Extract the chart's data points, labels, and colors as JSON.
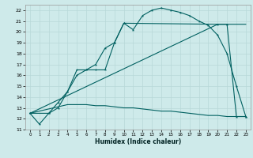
{
  "xlabel": "Humidex (Indice chaleur)",
  "bg_color": "#ceeaea",
  "grid_color": "#b8d8d8",
  "line_color": "#006060",
  "xlim": [
    -0.5,
    23.5
  ],
  "ylim": [
    11,
    22.5
  ],
  "yticks": [
    11,
    12,
    13,
    14,
    15,
    16,
    17,
    18,
    19,
    20,
    21,
    22
  ],
  "xticks": [
    0,
    1,
    2,
    3,
    4,
    5,
    6,
    7,
    8,
    9,
    10,
    11,
    12,
    13,
    14,
    15,
    16,
    17,
    18,
    19,
    20,
    21,
    22,
    23
  ],
  "line1_x": [
    0,
    1,
    2,
    3,
    4,
    5,
    6,
    7,
    8,
    9,
    10,
    11,
    12,
    13,
    14,
    15,
    16,
    17,
    18,
    19,
    20,
    21,
    22,
    23
  ],
  "line1_y": [
    12.5,
    11.5,
    12.5,
    13.0,
    14.5,
    16.5,
    16.5,
    17.0,
    18.5,
    19.0,
    20.8,
    20.2,
    21.5,
    22.0,
    22.2,
    22.0,
    21.8,
    21.5,
    21.0,
    20.6,
    19.7,
    18.0,
    15.0,
    12.2
  ],
  "line2_x": [
    0,
    2,
    3,
    4,
    5,
    6,
    7,
    8,
    9,
    10,
    20,
    21,
    22,
    23
  ],
  "line2_y": [
    12.5,
    12.5,
    13.5,
    14.5,
    16.0,
    16.5,
    16.5,
    16.5,
    19.0,
    20.8,
    20.7,
    20.7,
    12.2,
    12.2
  ],
  "line3_x": [
    0,
    4,
    5,
    6,
    7,
    8,
    9,
    10,
    11,
    12,
    13,
    14,
    15,
    16,
    17,
    18,
    19,
    20,
    21,
    22,
    23
  ],
  "line3_y": [
    12.5,
    13.3,
    13.3,
    13.3,
    13.2,
    13.2,
    13.1,
    13.0,
    13.0,
    12.9,
    12.8,
    12.7,
    12.7,
    12.6,
    12.5,
    12.4,
    12.3,
    12.3,
    12.2,
    12.2,
    12.2
  ],
  "line4_x": [
    0,
    20,
    23
  ],
  "line4_y": [
    12.5,
    20.7,
    20.7
  ]
}
